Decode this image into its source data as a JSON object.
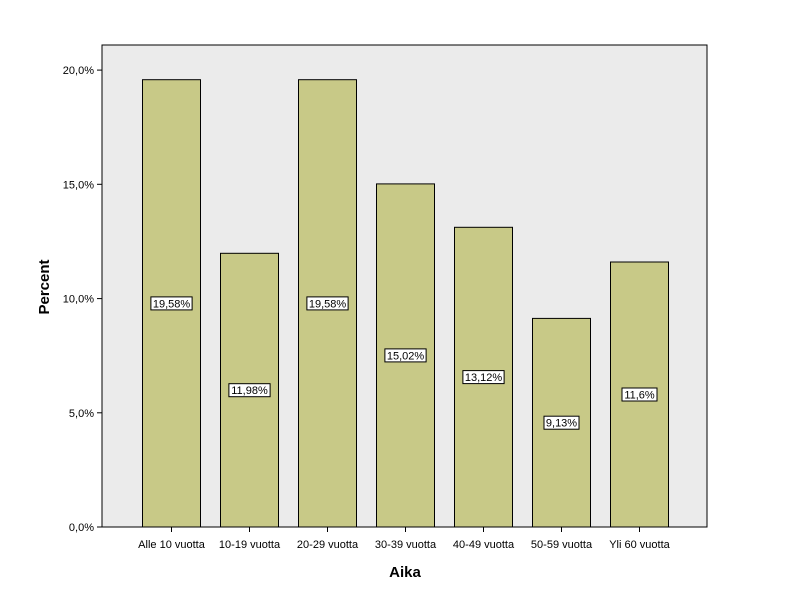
{
  "chart_data": {
    "type": "bar",
    "categories": [
      "Alle 10 vuotta",
      "10-19 vuotta",
      "20-29 vuotta",
      "30-39 vuotta",
      "40-49 vuotta",
      "50-59 vuotta",
      "Yli 60 vuotta"
    ],
    "values": [
      19.58,
      11.98,
      19.58,
      15.02,
      13.12,
      9.13,
      11.6
    ],
    "data_labels": [
      "19,58%",
      "11,98%",
      "19,58%",
      "15,02%",
      "13,12%",
      "9,13%",
      "11,6%"
    ],
    "title": "",
    "xlabel": "Aika",
    "ylabel": "Percent",
    "ylim": [
      0,
      21.1
    ],
    "yticks": [
      0,
      5,
      10,
      15,
      20
    ],
    "ytick_labels": [
      "0,0%",
      "5,0%",
      "10,0%",
      "15,0%",
      "20,0%"
    ],
    "grid": false,
    "legend": "none",
    "colors": {
      "bar_fill": "#c8c987",
      "bar_stroke": "#000000",
      "plot_background": "#ebebeb"
    }
  }
}
